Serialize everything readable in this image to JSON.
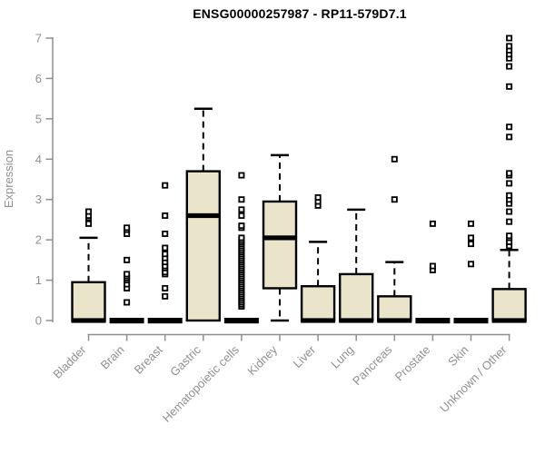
{
  "chart_data": {
    "type": "boxplot",
    "title": "ENSG00000257987 - RP11-579D7.1",
    "ylabel": "Expression",
    "ylim": [
      0,
      7
    ],
    "yticks": [
      0,
      1,
      2,
      3,
      4,
      5,
      6,
      7
    ],
    "grid": false,
    "legend": false,
    "colors": {
      "box_fill": "#e9e4ca",
      "box_stroke": "#000000",
      "median": "#000000",
      "axis": "#8f8f8f",
      "tick_text": "#8f8f8f",
      "title_text": "#000000"
    },
    "categories": [
      "Bladder",
      "Brain",
      "Breast",
      "Gastric",
      "Hematopoietic cells",
      "Kidney",
      "Liver",
      "Lung",
      "Pancreas",
      "Prostate",
      "Skin",
      "Unknown / Other"
    ],
    "boxes": [
      {
        "category": "Bladder",
        "q1": 0,
        "median": 0,
        "q3": 0.95,
        "whisker_low": 0,
        "whisker_high": 2.05,
        "outliers": [
          2.4,
          2.55,
          2.6,
          2.7
        ]
      },
      {
        "category": "Brain",
        "q1": 0,
        "median": 0,
        "q3": 0,
        "whisker_low": 0,
        "whisker_high": 0,
        "outliers": [
          0.45,
          0.8,
          0.9,
          1.0,
          1.05,
          1.1,
          1.15,
          1.5,
          2.15,
          2.25,
          2.3
        ]
      },
      {
        "category": "Breast",
        "q1": 0,
        "median": 0,
        "q3": 0,
        "whisker_low": 0,
        "whisker_high": 0,
        "outliers": [
          0.6,
          0.8,
          1.15,
          1.2,
          1.3,
          1.35,
          1.45,
          1.55,
          1.65,
          1.8,
          2.15,
          2.6,
          3.35
        ]
      },
      {
        "category": "Gastric",
        "q1": 0,
        "median": 2.6,
        "q3": 3.7,
        "whisker_low": 0,
        "whisker_high": 5.25,
        "outliers": []
      },
      {
        "category": "Hematopoietic cells",
        "q1": 0,
        "median": 0,
        "q3": 0,
        "whisker_low": 0,
        "whisker_high": 0,
        "outliers": [
          0.35,
          0.4,
          0.45,
          0.5,
          0.55,
          0.6,
          0.65,
          0.7,
          0.75,
          0.8,
          0.85,
          0.9,
          0.95,
          1.0,
          1.05,
          1.1,
          1.15,
          1.2,
          1.25,
          1.3,
          1.35,
          1.4,
          1.45,
          1.5,
          1.55,
          1.6,
          1.65,
          1.7,
          1.75,
          1.8,
          1.85,
          1.9,
          1.95,
          2.0,
          2.05,
          2.3,
          2.35,
          2.6,
          2.75,
          3.0,
          3.6
        ]
      },
      {
        "category": "Kidney",
        "q1": 0.8,
        "median": 2.05,
        "q3": 2.95,
        "whisker_low": 0,
        "whisker_high": 4.1,
        "outliers": []
      },
      {
        "category": "Liver",
        "q1": 0,
        "median": 0,
        "q3": 0.85,
        "whisker_low": 0,
        "whisker_high": 1.95,
        "outliers": [
          2.85,
          2.95,
          3.05
        ]
      },
      {
        "category": "Lung",
        "q1": 0,
        "median": 0,
        "q3": 1.15,
        "whisker_low": 0,
        "whisker_high": 2.75,
        "outliers": []
      },
      {
        "category": "Pancreas",
        "q1": 0,
        "median": 0,
        "q3": 0.6,
        "whisker_low": 0,
        "whisker_high": 1.45,
        "outliers": [
          3.0,
          4.0
        ]
      },
      {
        "category": "Prostate",
        "q1": 0,
        "median": 0,
        "q3": 0,
        "whisker_low": 0,
        "whisker_high": 0,
        "outliers": [
          1.25,
          1.35,
          2.4
        ]
      },
      {
        "category": "Skin",
        "q1": 0,
        "median": 0,
        "q3": 0,
        "whisker_low": 0,
        "whisker_high": 0,
        "outliers": [
          1.4,
          1.9,
          2.05,
          2.4
        ]
      },
      {
        "category": "Unknown / Other",
        "q1": 0,
        "median": 0,
        "q3": 0.78,
        "whisker_low": 0,
        "whisker_high": 1.75,
        "outliers": [
          1.85,
          1.95,
          2.05,
          2.1,
          2.45,
          2.7,
          2.9,
          3.0,
          3.1,
          3.4,
          3.6,
          3.65,
          4.55,
          4.8,
          5.8,
          6.3,
          6.5,
          6.6,
          6.7,
          6.8,
          7.0
        ]
      }
    ]
  }
}
